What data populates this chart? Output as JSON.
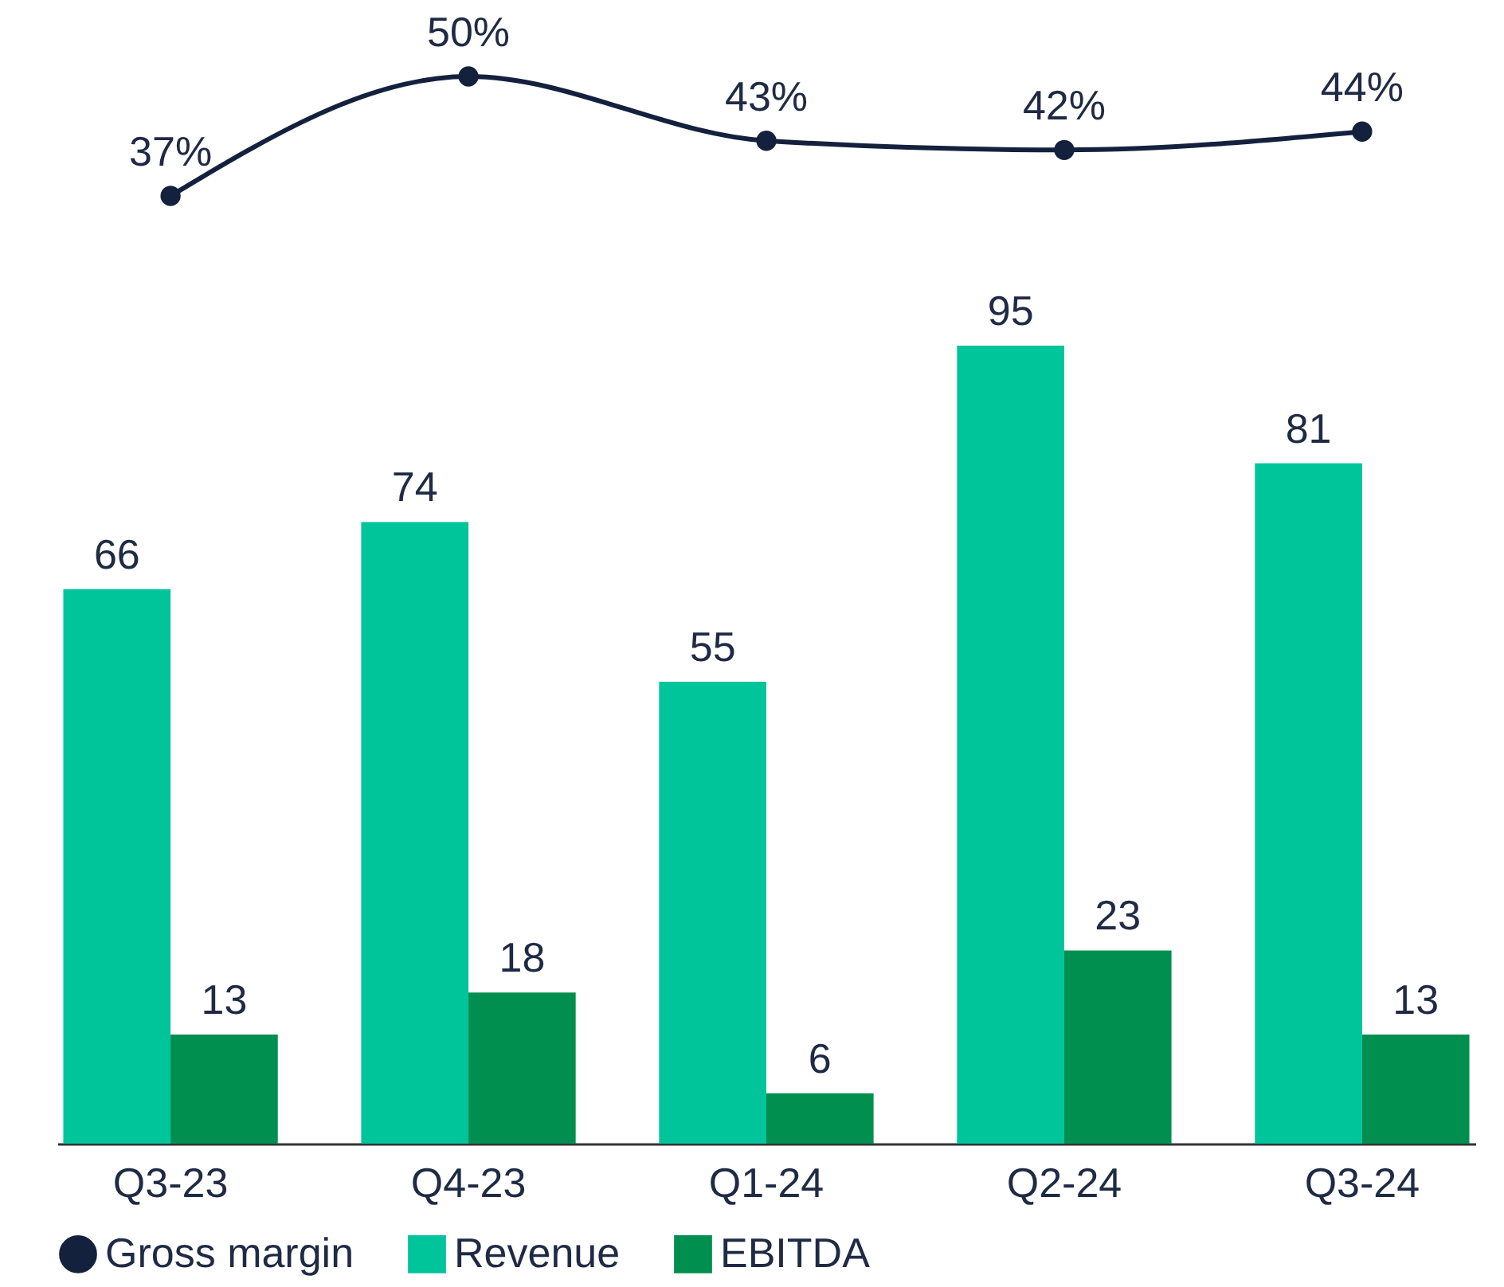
{
  "chart_data": [
    {
      "type": "line",
      "categories": [
        "Q3-23",
        "Q4-23",
        "Q1-24",
        "Q2-24",
        "Q3-24"
      ],
      "series": [
        {
          "name": "Gross margin",
          "color": "#14213d",
          "values": [
            37,
            50,
            43,
            42,
            44
          ],
          "value_labels": [
            "37%",
            "50%",
            "43%",
            "42%",
            "44%"
          ]
        }
      ],
      "tick_labels": false,
      "legend": "bottom",
      "marker": "circle"
    },
    {
      "type": "bar",
      "categories": [
        "Q3-23",
        "Q4-23",
        "Q1-24",
        "Q2-24",
        "Q3-24"
      ],
      "series": [
        {
          "name": "Revenue",
          "color": "#00c49a",
          "values": [
            66,
            74,
            55,
            95,
            81
          ],
          "value_labels": [
            "66",
            "74",
            "55",
            "95",
            "81"
          ]
        },
        {
          "name": "EBITDA",
          "color": "#008f4f",
          "values": [
            13,
            18,
            6,
            23,
            13
          ],
          "value_labels": [
            "13",
            "18",
            "6",
            "23",
            "13"
          ]
        }
      ],
      "ylim": [
        0,
        95
      ],
      "tick_labels": "x",
      "legend": "bottom"
    }
  ]
}
